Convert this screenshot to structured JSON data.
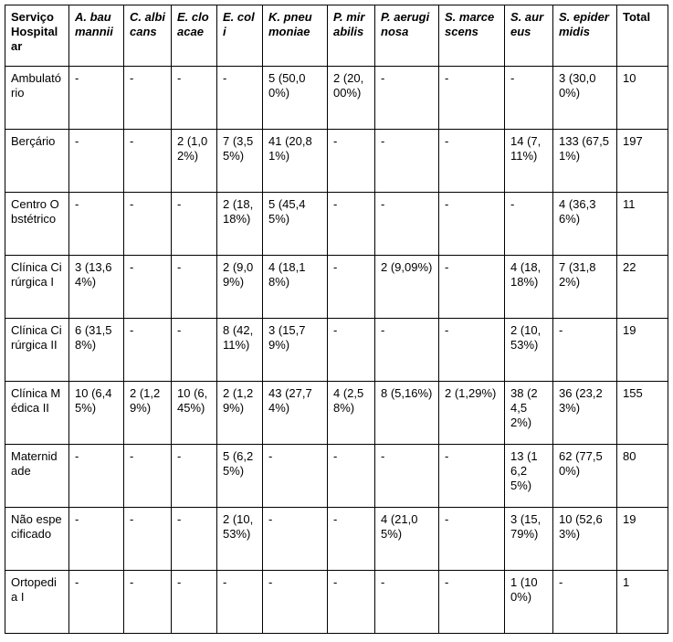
{
  "table": {
    "header": [
      "Serviço Hospitalar",
      "A. baumannii",
      "C. albicans",
      "E. cloacae",
      "E. coli",
      "K. pneumoniae",
      "P. mirabilis",
      "P. aeruginosa",
      "S. marcescens",
      "S. aureus",
      "S. epidermidis",
      "Total"
    ],
    "rows": [
      [
        "Ambulatório",
        "-",
        "-",
        "-",
        "-",
        "5 (50,00%)",
        "2 (20,00%)",
        "-",
        "-",
        "-",
        "3 (30,00%)",
        "10"
      ],
      [
        "Berçário",
        "-",
        "-",
        "2 (1,02%)",
        "7 (3,55%)",
        "41 (20,81%)",
        "-",
        "-",
        "-",
        "14 (7,11%)",
        "133 (67,51%)",
        "197"
      ],
      [
        "Centro Obstétrico",
        "-",
        "-",
        "-",
        "2 (18,18%)",
        "5 (45,45%)",
        "-",
        "-",
        "-",
        "-",
        "4 (36,36%)",
        "11"
      ],
      [
        "Clínica Cirúrgica I",
        "3 (13,64%)",
        "-",
        "-",
        "2 (9,09%)",
        "4 (18,18%)",
        "-",
        "2 (9,09%)",
        "-",
        "4 (18,18%)",
        "7 (31,82%)",
        "22"
      ],
      [
        "Clínica Cirúrgica II",
        "6 (31,58%)",
        "-",
        "-",
        "8 (42,11%)",
        "3 (15,79%)",
        "-",
        "-",
        "-",
        "2 (10,53%)",
        "-",
        "19"
      ],
      [
        "Clínica Médica II",
        "10 (6,45%)",
        "2 (1,29%)",
        "10 (6,45%)",
        "2 (1,29%)",
        "43 (27,74%)",
        "4 (2,58%)",
        "8 (5,16%)",
        "2 (1,29%)",
        "38 (24,52%)",
        "36 (23,23%)",
        "155"
      ],
      [
        "Maternidade",
        "-",
        "-",
        "-",
        "5 (6,25%)",
        "-",
        "-",
        "-",
        "-",
        "13 (16,25%)",
        "62 (77,50%)",
        "80"
      ],
      [
        "Não especificado",
        "-",
        "-",
        "-",
        "2 (10,53%)",
        "-",
        "-",
        "4 (21,05%)",
        "-",
        "3 (15,79%)",
        "10 (52,63%)",
        "19"
      ],
      [
        "Ortopedia I",
        "-",
        "-",
        "-",
        "-",
        "-",
        "-",
        "-",
        "-",
        "1 (100%)",
        "-",
        "1"
      ]
    ]
  }
}
